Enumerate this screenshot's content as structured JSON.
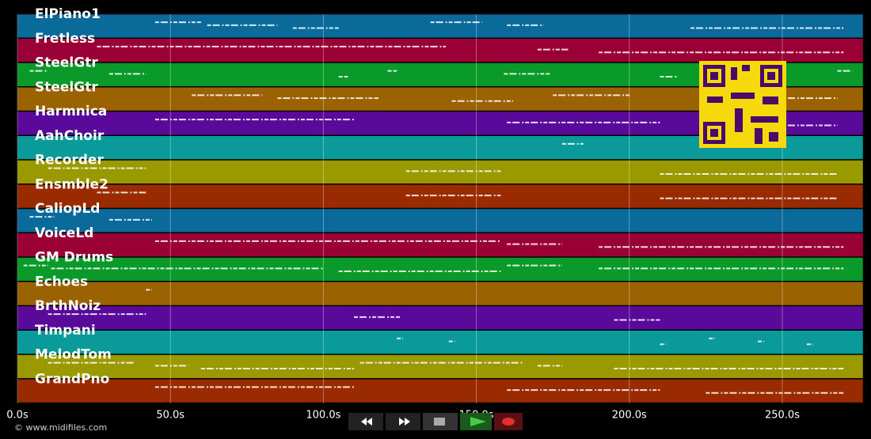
{
  "timeline": {
    "xlim": [
      0,
      276.4
    ],
    "xticks": [
      {
        "value": 0,
        "label": "0.0s"
      },
      {
        "value": 50,
        "label": "50.0s"
      },
      {
        "value": 100,
        "label": "100.0s"
      },
      {
        "value": 150,
        "label": "150.0s"
      },
      {
        "value": 200,
        "label": "200.0s"
      },
      {
        "value": 250,
        "label": "250.0s"
      }
    ],
    "tracks": [
      {
        "name": "ElPiano1",
        "color": "#0a6a9a",
        "notes": [
          [
            45,
            60
          ],
          [
            62,
            85
          ],
          [
            90,
            105
          ],
          [
            135,
            152
          ],
          [
            160,
            172
          ],
          [
            220,
            270
          ]
        ]
      },
      {
        "name": "Fretless",
        "color": "#9a0035",
        "notes": [
          [
            26,
            140
          ],
          [
            170,
            180
          ],
          [
            190,
            270
          ]
        ]
      },
      {
        "name": "SteelGtr",
        "color": "#0a9a2a",
        "notes": [
          [
            4,
            10
          ],
          [
            30,
            42
          ],
          [
            105,
            108
          ],
          [
            121,
            124
          ],
          [
            159,
            174
          ],
          [
            210,
            216
          ],
          [
            268,
            273
          ]
        ]
      },
      {
        "name": "SteelGtr",
        "color": "#9a6200",
        "notes": [
          [
            57,
            80
          ],
          [
            85,
            118
          ],
          [
            142,
            162
          ],
          [
            175,
            200
          ],
          [
            250,
            268
          ]
        ]
      },
      {
        "name": "Harmnica",
        "color": "#5a0a9a",
        "notes": [
          [
            45,
            110
          ],
          [
            160,
            210
          ],
          [
            250,
            268
          ]
        ]
      },
      {
        "name": "AahChoir",
        "color": "#0a9a9a",
        "notes": [
          [
            178,
            185
          ]
        ]
      },
      {
        "name": "Recorder",
        "color": "#9a9a00",
        "notes": [
          [
            10,
            42
          ],
          [
            127,
            158
          ],
          [
            210,
            268
          ]
        ]
      },
      {
        "name": "Ensmble2",
        "color": "#9a2a00",
        "notes": [
          [
            26,
            42
          ],
          [
            127,
            158
          ],
          [
            210,
            268
          ]
        ]
      },
      {
        "name": "CaliopLd",
        "color": "#0a6a9a",
        "notes": [
          [
            4,
            12
          ],
          [
            30,
            44
          ]
        ]
      },
      {
        "name": "VoiceLd",
        "color": "#9a0035",
        "notes": [
          [
            45,
            158
          ],
          [
            160,
            178
          ],
          [
            190,
            270
          ]
        ]
      },
      {
        "name": "GM Drums",
        "color": "#0a9a2a",
        "notes": [
          [
            2,
            10
          ],
          [
            11,
            100
          ],
          [
            105,
            158
          ],
          [
            160,
            178
          ],
          [
            190,
            270
          ]
        ]
      },
      {
        "name": "Echoes",
        "color": "#9a6200",
        "notes": [
          [
            42,
            44
          ]
        ]
      },
      {
        "name": "BrthNoiz",
        "color": "#5a0a9a",
        "notes": [
          [
            10,
            42
          ],
          [
            110,
            125
          ],
          [
            195,
            210
          ]
        ]
      },
      {
        "name": "Timpani",
        "color": "#0a9a9a",
        "notes": [
          [
            124,
            126
          ],
          [
            141,
            143
          ],
          [
            210,
            212
          ],
          [
            226,
            228
          ],
          [
            242,
            244
          ],
          [
            258,
            260
          ]
        ]
      },
      {
        "name": "MelodTom",
        "color": "#9a9a00",
        "notes": [
          [
            10,
            38
          ],
          [
            45,
            56
          ],
          [
            60,
            110
          ],
          [
            112,
            165
          ],
          [
            170,
            178
          ],
          [
            195,
            270
          ]
        ]
      },
      {
        "name": "GrandPno",
        "color": "#9a2a00",
        "notes": [
          [
            45,
            110
          ],
          [
            160,
            210
          ],
          [
            225,
            270
          ]
        ]
      }
    ]
  },
  "footer": {
    "copyright": "© www.midifiles.com"
  }
}
